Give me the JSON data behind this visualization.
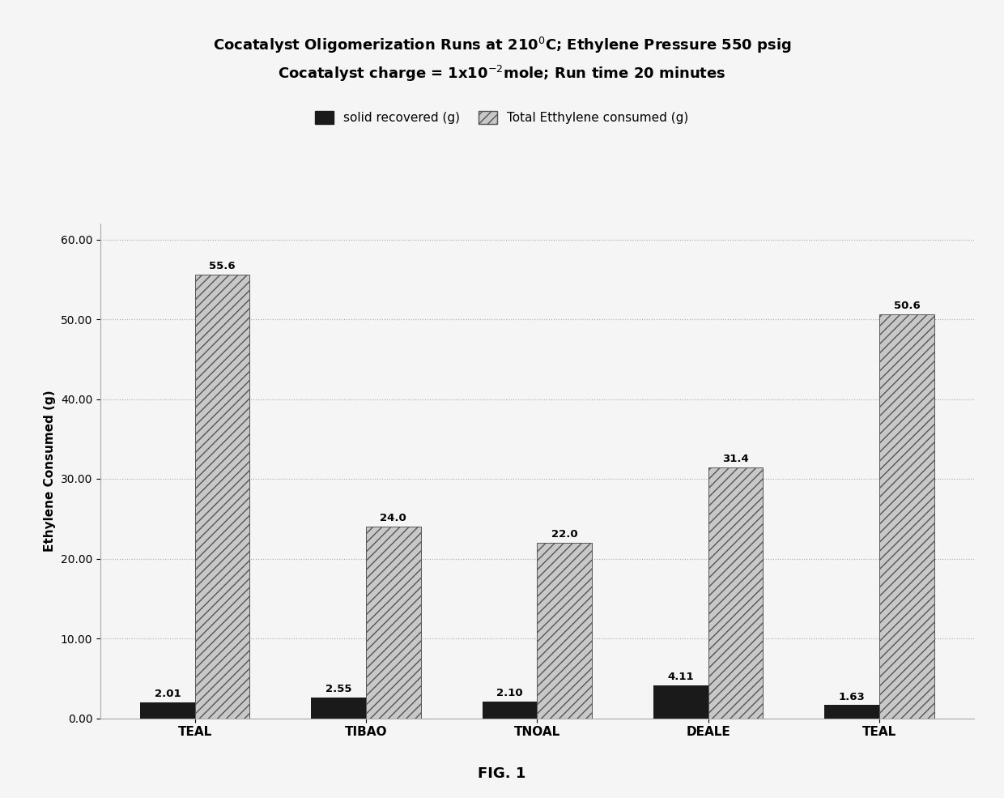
{
  "title_line1": "Cocatalyst Oligomerization Runs at 210$^{0}$C; Ethylene Pressure 550 psig",
  "title_line2": "Cocatalyst charge = 1x10$^{-2}$mole; Run time 20 minutes",
  "categories": [
    "TEAL",
    "TIBAO",
    "TNOAL",
    "DEALE",
    "TEAL"
  ],
  "solid_recovered": [
    2.01,
    2.55,
    2.1,
    4.11,
    1.63
  ],
  "solid_labels": [
    "2.01",
    "2.55",
    "2.10",
    "4.11",
    "1.63"
  ],
  "ethylene_consumed": [
    55.6,
    24.0,
    22.0,
    31.4,
    50.6
  ],
  "ethylene_labels": [
    "55.6",
    "24.0",
    "22.0",
    "31.4",
    "50.6"
  ],
  "solid_color": "#1a1a1a",
  "ethylene_facecolor": "#c8c8c8",
  "ethylene_edgecolor": "#555555",
  "ylabel": "Ethylene Consumed (g)",
  "ylim": [
    0,
    62
  ],
  "yticks": [
    0.0,
    10.0,
    20.0,
    30.0,
    40.0,
    50.0,
    60.0
  ],
  "ytick_labels": [
    "0.00",
    "10.00",
    "20.00",
    "30.00",
    "40.00",
    "50.00",
    "60.00"
  ],
  "legend_solid": "solid recovered (g)",
  "legend_ethylene": "Total Etthylene consumed (g)",
  "background_color": "#f5f5f5",
  "bar_width": 0.32,
  "title_fontsize": 13,
  "axis_fontsize": 11,
  "tick_fontsize": 10,
  "label_fontsize": 9.5,
  "fig_caption": "FIG. 1"
}
